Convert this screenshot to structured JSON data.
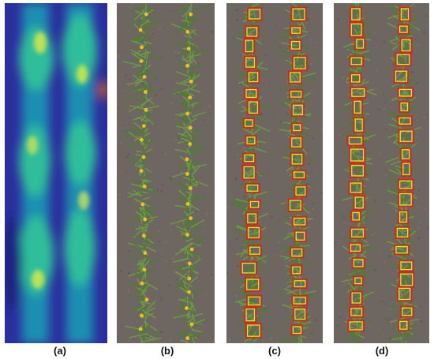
{
  "panels": [
    {
      "caption": "(a)",
      "kind": "attention-heatmap"
    },
    {
      "caption": "(b)",
      "kind": "annotated-aerial-photo"
    },
    {
      "caption": "(c)",
      "kind": "detection-boxes"
    },
    {
      "caption": "(d)",
      "kind": "detection-boxes"
    }
  ],
  "colors": {
    "heatmap_low": "#2b2f9e",
    "heatmap_mid": "#2fbf9a",
    "heatmap_high": "#d8e84a",
    "soil": "#6e6660",
    "leaf": "#5a8a3a",
    "marker": "#f0c020",
    "box_outer": "#e0201a",
    "box_inner": "#f2e21a"
  },
  "captions_text_color": "#111111"
}
